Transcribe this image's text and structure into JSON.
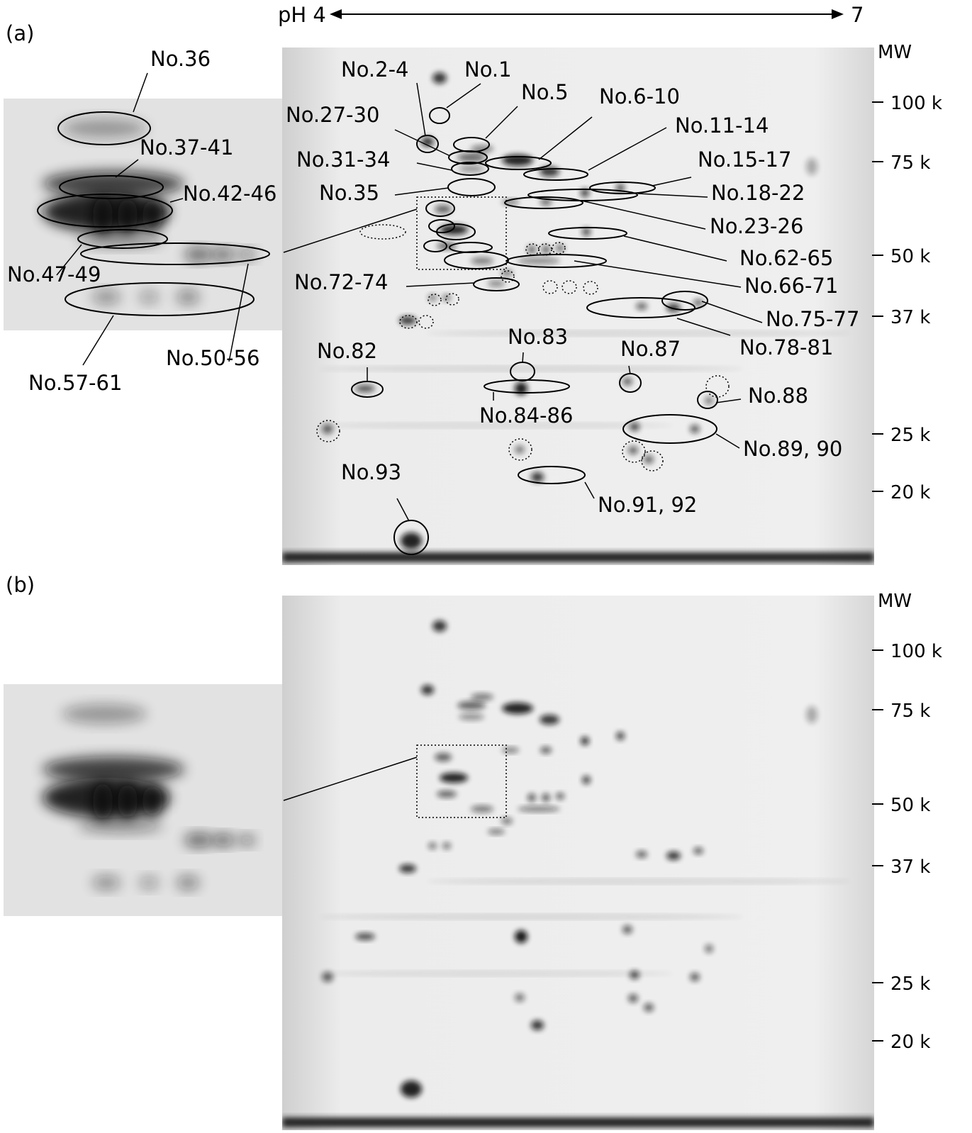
{
  "figure": {
    "ph_axis": {
      "start": "pH 4",
      "end": "7"
    },
    "panels": [
      {
        "label": "(a)",
        "mw_title": "MW",
        "mw_ticks": [
          "100 k",
          "75 k",
          "50 k",
          "37 k",
          "25 k",
          "20 k"
        ],
        "spot_labels": [
          "No.36",
          "No.37-41",
          "No.42-46",
          "No.47-49",
          "No.50-56",
          "No.57-61",
          "No.2-4",
          "No.1",
          "No.5",
          "No.6-10",
          "No.27-30",
          "No.11-14",
          "No.31-34",
          "No.15-17",
          "No.35",
          "No.18-22",
          "No.23-26",
          "No.62-65",
          "No.72-74",
          "No.66-71",
          "No.75-77",
          "No.78-81",
          "No.83",
          "No.82",
          "No.87",
          "No.84-86",
          "No.88",
          "No.89, 90",
          "No.93",
          "No.91, 92"
        ]
      },
      {
        "label": "(b)",
        "mw_title": "MW",
        "mw_ticks": [
          "100 k",
          "75 k",
          "50 k",
          "37 k",
          "25 k",
          "20 k"
        ]
      }
    ]
  }
}
